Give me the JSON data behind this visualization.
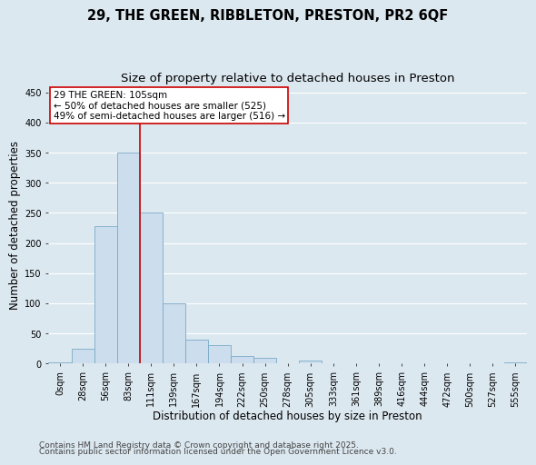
{
  "title_line1": "29, THE GREEN, RIBBLETON, PRESTON, PR2 6QF",
  "title_line2": "Size of property relative to detached houses in Preston",
  "xlabel": "Distribution of detached houses by size in Preston",
  "ylabel": "Number of detached properties",
  "bar_labels": [
    "0sqm",
    "28sqm",
    "56sqm",
    "83sqm",
    "111sqm",
    "139sqm",
    "167sqm",
    "194sqm",
    "222sqm",
    "250sqm",
    "278sqm",
    "305sqm",
    "333sqm",
    "361sqm",
    "389sqm",
    "416sqm",
    "444sqm",
    "472sqm",
    "500sqm",
    "527sqm",
    "555sqm"
  ],
  "bar_values": [
    2,
    24,
    228,
    350,
    250,
    100,
    40,
    30,
    13,
    10,
    0,
    5,
    0,
    0,
    0,
    0,
    0,
    0,
    0,
    0,
    2
  ],
  "bar_color": "#ccdded",
  "bar_edge_color": "#7aaac8",
  "vline_color": "#cc0000",
  "vline_x_idx": 3.5,
  "annotation_text": "29 THE GREEN: 105sqm\n← 50% of detached houses are smaller (525)\n49% of semi-detached houses are larger (516) →",
  "annotation_box_color": "#ffffff",
  "annotation_box_edge": "#cc0000",
  "ylim": [
    0,
    460
  ],
  "yticks": [
    0,
    50,
    100,
    150,
    200,
    250,
    300,
    350,
    400,
    450
  ],
  "background_color": "#dce8f0",
  "plot_bg_color": "#dce8f0",
  "grid_color": "#ffffff",
  "footer_line1": "Contains HM Land Registry data © Crown copyright and database right 2025.",
  "footer_line2": "Contains public sector information licensed under the Open Government Licence v3.0.",
  "title_fontsize": 10.5,
  "subtitle_fontsize": 9.5,
  "axis_label_fontsize": 8.5,
  "tick_fontsize": 7,
  "annotation_fontsize": 7.5,
  "footer_fontsize": 6.5
}
